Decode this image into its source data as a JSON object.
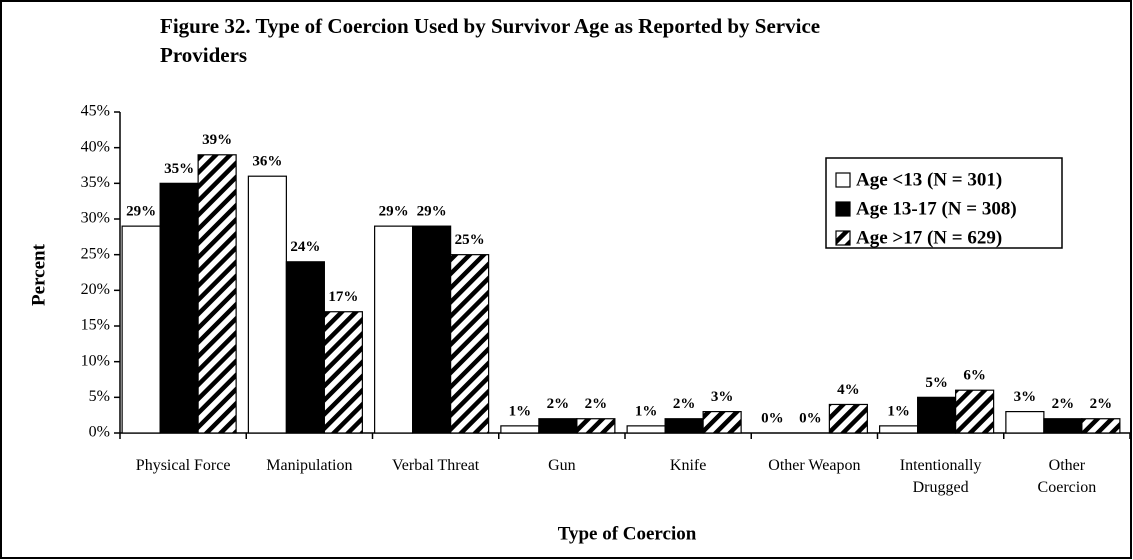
{
  "chart_data": {
    "type": "bar",
    "title": "Figure 32.  Type of Coercion Used by Survivor Age as Reported by Service Providers",
    "x_label": "Type of Coercion",
    "y_label": "Percent",
    "categories": [
      "Physical Force",
      "Manipulation",
      "Verbal Threat",
      "Gun",
      "Knife",
      "Other Weapon",
      "Intentionally Drugged",
      "Other Coercion"
    ],
    "series": [
      {
        "name": "Age <13 (N = 301)",
        "color": "#ffffff",
        "pattern": "solid",
        "values": [
          29,
          36,
          29,
          1,
          1,
          0,
          1,
          3
        ],
        "value_labels": [
          "29%",
          "36%",
          "29%",
          "1%",
          "1%",
          "0%",
          "1%",
          "3%"
        ]
      },
      {
        "name": "Age 13-17 (N = 308)",
        "color": "#000000",
        "pattern": "solid",
        "values": [
          35,
          24,
          29,
          2,
          2,
          0,
          5,
          2
        ],
        "value_labels": [
          "35%",
          "24%",
          "29%",
          "2%",
          "2%",
          "0%",
          "5%",
          "2%"
        ]
      },
      {
        "name": "Age >17 (N = 629)",
        "color": "#000000",
        "pattern": "hatch",
        "values": [
          39,
          17,
          25,
          2,
          3,
          4,
          6,
          2
        ],
        "value_labels": [
          "39%",
          "17%",
          "25%",
          "2%",
          "3%",
          "4%",
          "6%",
          "2%"
        ]
      }
    ],
    "ylim": [
      0,
      45
    ],
    "yticks": [
      {
        "value": 0,
        "label": "0%"
      },
      {
        "value": 5,
        "label": "5%"
      },
      {
        "value": 10,
        "label": "10%"
      },
      {
        "value": 15,
        "label": "15%"
      },
      {
        "value": 20,
        "label": "20%"
      },
      {
        "value": 25,
        "label": "25%"
      },
      {
        "value": 30,
        "label": "30%"
      },
      {
        "value": 35,
        "label": "35%"
      },
      {
        "value": 40,
        "label": "40%"
      },
      {
        "value": 45,
        "label": "45%"
      }
    ],
    "grid": false,
    "legend": "upper right"
  }
}
